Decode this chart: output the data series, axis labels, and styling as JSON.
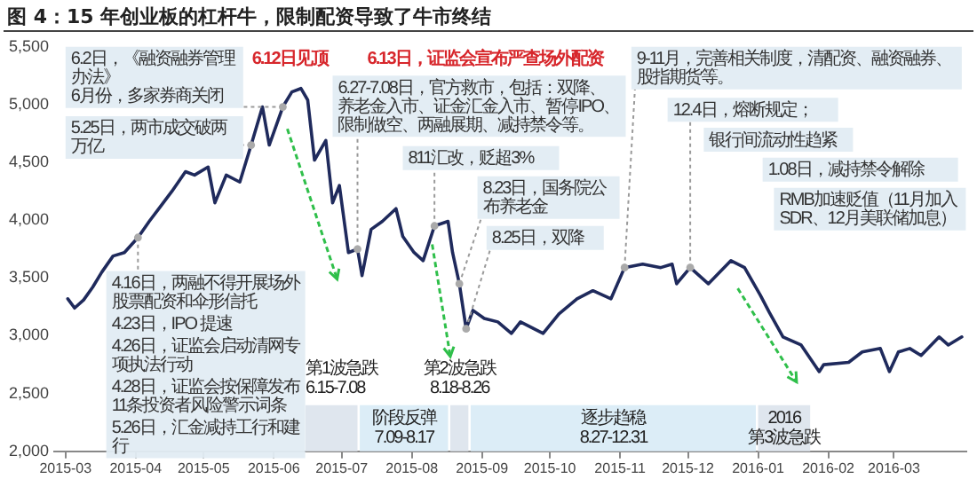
{
  "chart_data": {
    "type": "line",
    "title": "图 4：15 年创业板的杠杆牛，限制配资导致了牛市终结",
    "x": [
      "2015-03-02",
      "2015-03-05",
      "2015-03-09",
      "2015-03-13",
      "2015-03-17",
      "2015-03-22",
      "2015-03-27",
      "2015-04-02",
      "2015-04-07",
      "2015-04-12",
      "2015-04-17",
      "2015-04-23",
      "2015-04-27",
      "2015-05-03",
      "2015-05-06",
      "2015-05-11",
      "2015-05-17",
      "2015-05-22",
      "2015-05-27",
      "2015-05-30",
      "2015-06-05",
      "2015-06-09",
      "2015-06-13",
      "2015-06-16",
      "2015-06-19",
      "2015-06-24",
      "2015-06-27",
      "2015-06-30",
      "2015-07-04",
      "2015-07-08",
      "2015-07-10",
      "2015-07-14",
      "2015-07-19",
      "2015-07-25",
      "2015-07-28",
      "2015-08-02",
      "2015-08-06",
      "2015-08-11",
      "2015-08-17",
      "2015-08-19",
      "2015-08-22",
      "2015-08-25",
      "2015-08-28",
      "2015-09-02",
      "2015-09-08",
      "2015-09-14",
      "2015-09-18",
      "2015-09-28",
      "2015-10-05",
      "2015-10-13",
      "2015-10-20",
      "2015-10-28",
      "2015-11-03",
      "2015-11-11",
      "2015-11-19",
      "2015-11-24",
      "2015-11-26",
      "2015-12-02",
      "2015-12-10",
      "2015-12-20",
      "2015-12-26",
      "2016-01-02",
      "2016-01-06",
      "2016-01-12",
      "2016-01-20",
      "2016-01-28",
      "2016-01-30",
      "2016-02-10",
      "2016-02-16",
      "2016-02-24",
      "2016-02-28",
      "2016-03-03",
      "2016-03-08",
      "2016-03-13",
      "2016-03-21",
      "2016-03-25",
      "2016-03-31"
    ],
    "values": [
      3320,
      3240,
      3310,
      3420,
      3550,
      3690,
      3720,
      3850,
      3990,
      4120,
      4250,
      4420,
      4390,
      4460,
      4150,
      4390,
      4330,
      4650,
      4980,
      4650,
      4980,
      5110,
      5140,
      5040,
      4520,
      4690,
      4150,
      4300,
      3720,
      3750,
      3520,
      3920,
      3990,
      4100,
      3860,
      3720,
      3650,
      3950,
      3990,
      3720,
      3450,
      3060,
      3220,
      3150,
      3120,
      3020,
      3120,
      3020,
      3190,
      3320,
      3390,
      3320,
      3590,
      3620,
      3590,
      3620,
      3450,
      3590,
      3450,
      3650,
      3590,
      3350,
      3200,
      2990,
      2920,
      2690,
      2750,
      2770,
      2860,
      2890,
      2690,
      2860,
      2890,
      2830,
      2990,
      2920,
      2990
    ],
    "color": "#1f2a5c",
    "xlim": [
      "2015-02-24",
      "2016-04-02"
    ],
    "xticks": [
      "2015-03",
      "2015-04",
      "2015-05",
      "2015-06",
      "2015-07",
      "2015-08",
      "2015-09",
      "2015-10",
      "2015-11",
      "2015-12",
      "2016-01",
      "2016-02",
      "2016-03"
    ],
    "ylim": [
      2000,
      5500
    ],
    "yticks": [
      {
        "value": 2000,
        "label": "2,000"
      },
      {
        "value": 2500,
        "label": "2,500"
      },
      {
        "value": 3000,
        "label": "3,000"
      },
      {
        "value": 3500,
        "label": "3,500"
      },
      {
        "value": 4000,
        "label": "4,000"
      },
      {
        "value": 4500,
        "label": "4,500"
      },
      {
        "value": 5000,
        "label": "5,000"
      },
      {
        "value": 5500,
        "label": "5,500"
      }
    ],
    "grid": false,
    "legend": false,
    "bands": [
      {
        "axis": "x",
        "from": "2015-06-15",
        "to": "2015-07-08",
        "label": "第1波急跌\n6.15-7.08",
        "color": "#dfe6ee"
      },
      {
        "axis": "x",
        "from": "2015-07-09",
        "to": "2015-08-17",
        "label": "阶段反弹\n7.09-8.17",
        "color": "#dcedf7"
      },
      {
        "axis": "x",
        "from": "2015-08-18",
        "to": "2015-08-26",
        "label": "第2波急跌\n8.18-8.26",
        "color": "#dfe6ee"
      },
      {
        "axis": "x",
        "from": "2015-08-27",
        "to": "2015-12-31",
        "label": "逐步趋稳\n8.27-12.31",
        "color": "#dcedf7"
      },
      {
        "axis": "x",
        "from": "2016-01-01",
        "to": "2016-01-24",
        "label": "2016\n第3波急跌",
        "color": "#dfe6ee"
      }
    ],
    "annotations": [
      {
        "text": "4.16日，两融不得开展场外股票配资和伞形信托",
        "x": "2015-04-02",
        "y": 3850
      },
      "4.23日，IPO 提速",
      "4.26日，证监会启动清网专项执法行动",
      "4.28日，证监会按保障发布11条投资者风险警示词条",
      "5.26日，汇金减持工行和建行",
      {
        "text": "5.25日，两市成交破两万亿",
        "x": "2015-05-22",
        "y": 4650
      },
      {
        "text": "6.2日，《融资融券管理办法》\n6月份，多家券商关闭",
        "x": "2015-06-05",
        "y": 4980
      },
      "6.12日见顶",
      "6.13日，证监会宣布严查场外配资",
      {
        "text": "6.27-7.08日，官方救市，包括：双降、养老金入市、证金汇金入市、暂停IPO、限制做空、两融展期、减持禁令等。",
        "x": "2015-07-08",
        "y": 3750
      },
      {
        "text": "811汇改，贬超3%",
        "x": "2015-08-11",
        "y": 3950
      },
      {
        "text": "8.23日，国务院公布养老金",
        "x": "2015-08-22",
        "y": 3450
      },
      {
        "text": "8.25日，双降",
        "x": "2015-08-25",
        "y": 3060
      },
      {
        "text": "9-11月，完善相关制度，清配资、融资融券、股指期货等。",
        "x": "2015-11-03",
        "y": 3590
      },
      {
        "text": "12.4日，熔断规定；",
        "x": "2015-12-02",
        "y": 3590
      },
      "银行间流动性趋紧",
      "1.08日，减持禁令解除",
      "RMB加速贬值（11月加入SDR、12月美联储加息）"
    ]
  }
}
